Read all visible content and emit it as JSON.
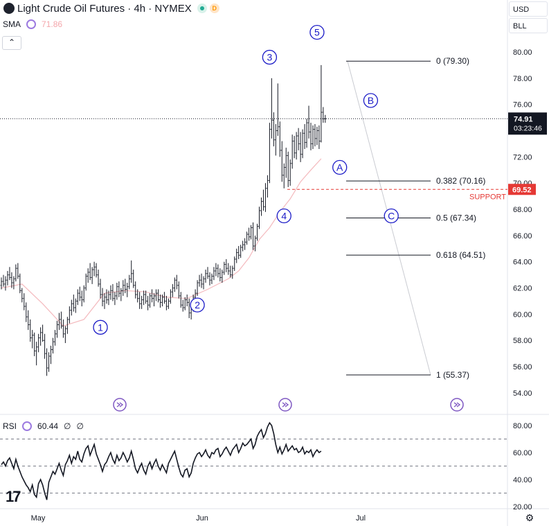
{
  "header": {
    "title": "Light Crude Oil Futures · 4h · NYMEX",
    "badge_d": "D",
    "sma_label": "SMA",
    "sma_value": "71.86",
    "rsi_label": "RSI",
    "rsi_value": "60.44",
    "rsi_extra1": "∅",
    "rsi_extra2": "∅"
  },
  "toolbar": {
    "currency": "USD",
    "unit": "BLL",
    "collapse": "⌃"
  },
  "colors": {
    "candle": "#131722",
    "sma": "#f4b9bd",
    "support": "#e53935",
    "wave": "#1a1ac7",
    "price_tag": "#131722",
    "support_tag": "#e53935",
    "rsi_line": "#131722",
    "grid_dash": "#787b86",
    "gray_projection": "#c9cbd1"
  },
  "chart_data": {
    "type": "candlestick",
    "price_axis": {
      "min": 53,
      "max": 81,
      "ticks": [
        "80.00",
        "78.00",
        "76.00",
        "74.00",
        "72.00",
        "70.00",
        "68.00",
        "66.00",
        "64.00",
        "62.00",
        "60.00",
        "58.00",
        "56.00",
        "54.00"
      ]
    },
    "time_axis": {
      "labels": [
        "May",
        "Jun",
        "Jul"
      ]
    },
    "last_price": "74.91",
    "countdown": "03:23:46",
    "support_price": "69.52",
    "support_label": "SUPPORT",
    "fib_levels": [
      {
        "label": "0 (79.30)",
        "price": 79.3
      },
      {
        "label": "0.382 (70.16)",
        "price": 70.16
      },
      {
        "label": "0.5 (67.34)",
        "price": 67.34
      },
      {
        "label": "0.618 (64.51)",
        "price": 64.51
      },
      {
        "label": "1 (55.37)",
        "price": 55.37
      }
    ],
    "wave_labels": [
      {
        "label": "1",
        "bar": 48,
        "price": 59.0,
        "pos": "above"
      },
      {
        "label": "2",
        "bar": 95,
        "price": 60.7,
        "pos": "below"
      },
      {
        "label": "3",
        "bar": 130,
        "price": 79.6,
        "pos": "above"
      },
      {
        "label": "4",
        "bar": 137,
        "price": 67.5,
        "pos": "below"
      },
      {
        "label": "5",
        "bar": 153,
        "price": 81.5,
        "pos": "above"
      },
      {
        "label": "A",
        "bar": 164,
        "price": 71.2,
        "pos": "above"
      },
      {
        "label": "B",
        "bar": 179,
        "price": 76.3,
        "pos": "above"
      },
      {
        "label": "C",
        "bar": 189,
        "price": 67.5,
        "pos": "above"
      }
    ],
    "ohlc": [
      [
        62.2,
        62.8,
        61.9,
        62.5
      ],
      [
        62.5,
        63.0,
        62.1,
        62.3
      ],
      [
        62.3,
        62.9,
        61.8,
        62.6
      ],
      [
        62.6,
        63.3,
        62.2,
        63.0
      ],
      [
        63.0,
        63.6,
        62.6,
        62.8
      ],
      [
        62.8,
        63.2,
        62.0,
        62.4
      ],
      [
        62.4,
        62.9,
        61.9,
        62.7
      ],
      [
        62.7,
        63.8,
        62.5,
        63.5
      ],
      [
        63.5,
        63.9,
        62.7,
        62.9
      ],
      [
        62.9,
        63.1,
        61.6,
        61.8
      ],
      [
        61.8,
        62.0,
        60.9,
        61.2
      ],
      [
        61.2,
        61.6,
        60.3,
        60.6
      ],
      [
        60.6,
        60.9,
        59.4,
        59.8
      ],
      [
        59.8,
        60.3,
        58.8,
        59.2
      ],
      [
        59.2,
        59.6,
        57.9,
        58.2
      ],
      [
        58.2,
        58.8,
        57.4,
        58.4
      ],
      [
        58.4,
        58.6,
        56.8,
        57.2
      ],
      [
        57.2,
        57.9,
        56.1,
        57.5
      ],
      [
        57.5,
        58.5,
        57.1,
        58.2
      ],
      [
        58.2,
        59.0,
        57.6,
        58.6
      ],
      [
        58.6,
        59.2,
        57.9,
        58.0
      ],
      [
        58.0,
        58.5,
        56.6,
        57.0
      ],
      [
        57.0,
        57.4,
        55.3,
        55.9
      ],
      [
        55.9,
        57.1,
        55.6,
        56.8
      ],
      [
        56.8,
        57.6,
        56.2,
        57.3
      ],
      [
        57.3,
        58.2,
        57.0,
        57.9
      ],
      [
        57.9,
        58.8,
        57.6,
        58.5
      ],
      [
        58.5,
        59.5,
        58.2,
        59.2
      ],
      [
        59.2,
        60.1,
        58.8,
        59.6
      ],
      [
        59.6,
        60.2,
        58.9,
        59.1
      ],
      [
        59.1,
        59.6,
        58.2,
        58.5
      ],
      [
        58.5,
        59.1,
        57.8,
        58.9
      ],
      [
        58.9,
        59.8,
        58.5,
        59.6
      ],
      [
        59.6,
        60.6,
        59.3,
        60.3
      ],
      [
        60.3,
        61.1,
        59.9,
        60.8
      ],
      [
        60.8,
        61.5,
        60.2,
        60.5
      ],
      [
        60.5,
        61.2,
        60.1,
        61.0
      ],
      [
        61.0,
        61.9,
        60.7,
        61.6
      ],
      [
        61.6,
        62.1,
        61.0,
        61.3
      ],
      [
        61.3,
        61.8,
        60.6,
        61.1
      ],
      [
        61.1,
        62.2,
        60.9,
        62.0
      ],
      [
        62.0,
        63.1,
        61.8,
        62.9
      ],
      [
        62.9,
        63.5,
        62.4,
        63.2
      ],
      [
        63.2,
        63.9,
        62.6,
        62.8
      ],
      [
        62.8,
        63.6,
        62.3,
        63.4
      ],
      [
        63.4,
        64.0,
        62.9,
        63.6
      ],
      [
        63.6,
        63.9,
        62.8,
        63.0
      ],
      [
        63.0,
        63.4,
        62.1,
        62.3
      ],
      [
        62.3,
        62.7,
        61.2,
        61.5
      ],
      [
        61.5,
        62.0,
        60.6,
        61.0
      ],
      [
        61.0,
        61.6,
        60.4,
        61.3
      ],
      [
        61.3,
        61.9,
        60.8,
        61.1
      ],
      [
        61.1,
        61.8,
        60.7,
        61.5
      ],
      [
        61.5,
        62.2,
        61.1,
        61.8
      ],
      [
        61.8,
        62.3,
        61.0,
        61.2
      ],
      [
        61.2,
        61.7,
        60.7,
        61.4
      ],
      [
        61.4,
        62.4,
        61.1,
        62.1
      ],
      [
        62.1,
        62.5,
        61.3,
        61.6
      ],
      [
        61.6,
        62.0,
        61.0,
        61.8
      ],
      [
        61.8,
        62.6,
        61.4,
        62.2
      ],
      [
        62.2,
        62.7,
        61.6,
        61.9
      ],
      [
        61.9,
        62.4,
        61.3,
        62.1
      ],
      [
        62.1,
        63.0,
        61.9,
        62.7
      ],
      [
        62.7,
        64.1,
        62.4,
        63.1
      ],
      [
        63.1,
        63.4,
        62.0,
        62.2
      ],
      [
        62.2,
        62.5,
        61.2,
        61.5
      ],
      [
        61.5,
        61.9,
        60.9,
        61.2
      ],
      [
        61.2,
        61.7,
        60.4,
        60.8
      ],
      [
        60.8,
        61.4,
        60.4,
        61.1
      ],
      [
        61.1,
        61.8,
        60.7,
        61.5
      ],
      [
        61.5,
        61.8,
        60.8,
        61.0
      ],
      [
        61.0,
        61.4,
        60.3,
        60.7
      ],
      [
        60.7,
        61.6,
        60.5,
        61.4
      ],
      [
        61.4,
        61.9,
        60.9,
        61.2
      ],
      [
        61.2,
        61.6,
        60.6,
        61.4
      ],
      [
        61.4,
        61.9,
        61.0,
        61.6
      ],
      [
        61.6,
        61.9,
        60.9,
        61.1
      ],
      [
        61.1,
        61.5,
        60.5,
        60.9
      ],
      [
        60.9,
        61.5,
        60.6,
        61.3
      ],
      [
        61.3,
        61.7,
        60.8,
        61.0
      ],
      [
        61.0,
        61.4,
        60.3,
        60.6
      ],
      [
        60.6,
        61.2,
        60.4,
        61.0
      ],
      [
        61.0,
        61.9,
        60.8,
        61.7
      ],
      [
        61.7,
        62.3,
        61.3,
        62.0
      ],
      [
        62.0,
        62.8,
        61.7,
        62.6
      ],
      [
        62.6,
        63.0,
        61.9,
        62.2
      ],
      [
        62.2,
        62.5,
        61.2,
        61.4
      ],
      [
        61.4,
        61.7,
        60.5,
        60.7
      ],
      [
        60.7,
        61.1,
        60.2,
        60.5
      ],
      [
        60.5,
        61.3,
        60.3,
        61.1
      ],
      [
        61.1,
        61.5,
        60.6,
        60.9
      ],
      [
        60.9,
        61.2,
        59.7,
        60.1
      ],
      [
        60.1,
        60.5,
        59.6,
        60.4
      ],
      [
        60.4,
        61.5,
        60.2,
        61.3
      ],
      [
        61.3,
        61.9,
        60.9,
        61.6
      ],
      [
        61.6,
        62.6,
        61.4,
        62.4
      ],
      [
        62.4,
        63.0,
        62.1,
        62.6
      ],
      [
        62.6,
        63.1,
        62.0,
        62.3
      ],
      [
        62.3,
        62.9,
        61.9,
        62.7
      ],
      [
        62.7,
        63.4,
        62.4,
        63.1
      ],
      [
        63.1,
        63.6,
        62.7,
        62.9
      ],
      [
        62.9,
        63.2,
        62.2,
        62.6
      ],
      [
        62.6,
        63.1,
        62.3,
        62.9
      ],
      [
        62.9,
        63.6,
        62.6,
        63.3
      ],
      [
        63.3,
        63.9,
        62.9,
        63.5
      ],
      [
        63.5,
        63.8,
        62.8,
        63.1
      ],
      [
        63.1,
        63.5,
        62.5,
        62.8
      ],
      [
        62.8,
        63.4,
        62.4,
        63.2
      ],
      [
        63.2,
        64.0,
        63.0,
        63.8
      ],
      [
        63.8,
        64.2,
        63.2,
        63.5
      ],
      [
        63.5,
        63.9,
        63.0,
        63.3
      ],
      [
        63.3,
        63.7,
        62.8,
        63.0
      ],
      [
        63.0,
        63.7,
        62.7,
        63.5
      ],
      [
        63.5,
        64.4,
        63.3,
        64.2
      ],
      [
        64.2,
        65.0,
        63.9,
        64.7
      ],
      [
        64.7,
        65.2,
        64.2,
        64.5
      ],
      [
        64.5,
        65.3,
        64.3,
        65.1
      ],
      [
        65.1,
        65.6,
        64.8,
        65.3
      ],
      [
        65.3,
        65.8,
        64.9,
        65.5
      ],
      [
        65.5,
        66.3,
        65.3,
        66.1
      ],
      [
        66.1,
        66.6,
        65.6,
        65.9
      ],
      [
        65.9,
        66.8,
        65.7,
        66.6
      ],
      [
        66.6,
        67.0,
        64.9,
        65.2
      ],
      [
        65.2,
        66.0,
        64.8,
        65.8
      ],
      [
        65.8,
        66.9,
        65.6,
        66.7
      ],
      [
        66.7,
        68.2,
        66.5,
        67.9
      ],
      [
        67.9,
        68.9,
        67.5,
        68.6
      ],
      [
        68.6,
        69.5,
        67.9,
        68.2
      ],
      [
        68.2,
        70.0,
        67.8,
        69.6
      ],
      [
        69.6,
        70.6,
        68.9,
        70.2
      ],
      [
        70.2,
        74.6,
        70.0,
        74.1
      ],
      [
        74.1,
        78.0,
        73.4,
        74.8
      ],
      [
        74.8,
        75.4,
        72.8,
        73.3
      ],
      [
        73.3,
        74.5,
        72.1,
        74.0
      ],
      [
        74.0,
        77.6,
        73.6,
        74.3
      ],
      [
        74.3,
        74.7,
        72.0,
        72.5
      ],
      [
        72.5,
        73.2,
        70.1,
        70.6
      ],
      [
        70.6,
        71.5,
        69.6,
        71.2
      ],
      [
        71.2,
        72.7,
        70.4,
        72.1
      ],
      [
        72.1,
        72.4,
        69.7,
        70.2
      ],
      [
        70.2,
        71.8,
        69.8,
        71.5
      ],
      [
        71.5,
        73.7,
        71.1,
        73.2
      ],
      [
        73.2,
        73.6,
        71.9,
        72.3
      ],
      [
        72.3,
        73.9,
        71.8,
        73.6
      ],
      [
        73.6,
        74.2,
        72.5,
        73.0
      ],
      [
        73.0,
        73.9,
        71.6,
        72.2
      ],
      [
        72.2,
        74.1,
        71.9,
        73.8
      ],
      [
        73.8,
        74.5,
        72.6,
        73.1
      ],
      [
        73.1,
        74.9,
        72.7,
        74.6
      ],
      [
        74.6,
        75.9,
        73.4,
        73.9
      ],
      [
        73.9,
        74.6,
        72.5,
        73.0
      ],
      [
        73.0,
        74.4,
        72.6,
        74.1
      ],
      [
        74.1,
        74.5,
        72.8,
        73.4
      ],
      [
        73.4,
        74.3,
        72.9,
        74.0
      ],
      [
        74.0,
        74.4,
        72.6,
        73.2
      ],
      [
        73.2,
        79.0,
        73.1,
        75.4
      ],
      [
        75.4,
        75.8,
        74.6,
        74.9
      ],
      [
        74.9,
        75.2,
        74.6,
        74.91
      ]
    ],
    "sma_line": [
      [
        0,
        62.0
      ],
      [
        10,
        62.3
      ],
      [
        20,
        60.8
      ],
      [
        30,
        59.1
      ],
      [
        40,
        59.6
      ],
      [
        50,
        61.6
      ],
      [
        60,
        61.8
      ],
      [
        70,
        61.7
      ],
      [
        80,
        61.3
      ],
      [
        90,
        61.2
      ],
      [
        100,
        61.9
      ],
      [
        110,
        62.7
      ],
      [
        115,
        63.3
      ],
      [
        120,
        64.3
      ],
      [
        125,
        65.7
      ],
      [
        130,
        66.6
      ],
      [
        135,
        67.8
      ],
      [
        140,
        68.8
      ],
      [
        145,
        70.1
      ],
      [
        150,
        71.0
      ],
      [
        155,
        71.86
      ]
    ],
    "rsi": {
      "levels": [
        70,
        50,
        30
      ],
      "ticks": [
        "80.00",
        "60.00",
        "40.00",
        "20.00"
      ],
      "values": [
        51,
        53,
        50,
        54,
        56,
        52,
        48,
        55,
        50,
        46,
        42,
        39,
        36,
        34,
        31,
        36,
        29,
        27,
        37,
        40,
        36,
        30,
        25,
        38,
        42,
        46,
        44,
        48,
        52,
        47,
        43,
        51,
        54,
        58,
        52,
        57,
        55,
        61,
        55,
        53,
        59,
        63,
        65,
        58,
        62,
        66,
        59,
        55,
        51,
        46,
        51,
        53,
        57,
        60,
        55,
        52,
        58,
        54,
        56,
        60,
        57,
        53,
        56,
        61,
        55,
        48,
        45,
        49,
        52,
        47,
        44,
        50,
        53,
        48,
        52,
        55,
        50,
        47,
        51,
        48,
        45,
        52,
        55,
        58,
        61,
        55,
        49,
        44,
        42,
        47,
        48,
        42,
        45,
        52,
        56,
        59,
        60,
        57,
        59,
        62,
        58,
        56,
        60,
        59,
        62,
        63,
        57,
        59,
        62,
        64,
        61,
        58,
        62,
        64,
        66,
        60,
        63,
        67,
        65,
        66,
        68,
        70,
        63,
        66,
        72,
        75,
        77,
        71,
        74,
        79,
        82,
        80,
        74,
        66,
        60,
        64,
        59,
        62,
        66,
        61,
        63,
        65,
        62,
        63,
        60,
        61,
        64,
        59,
        61,
        60,
        62,
        57,
        60,
        62,
        60,
        61
      ]
    }
  }
}
